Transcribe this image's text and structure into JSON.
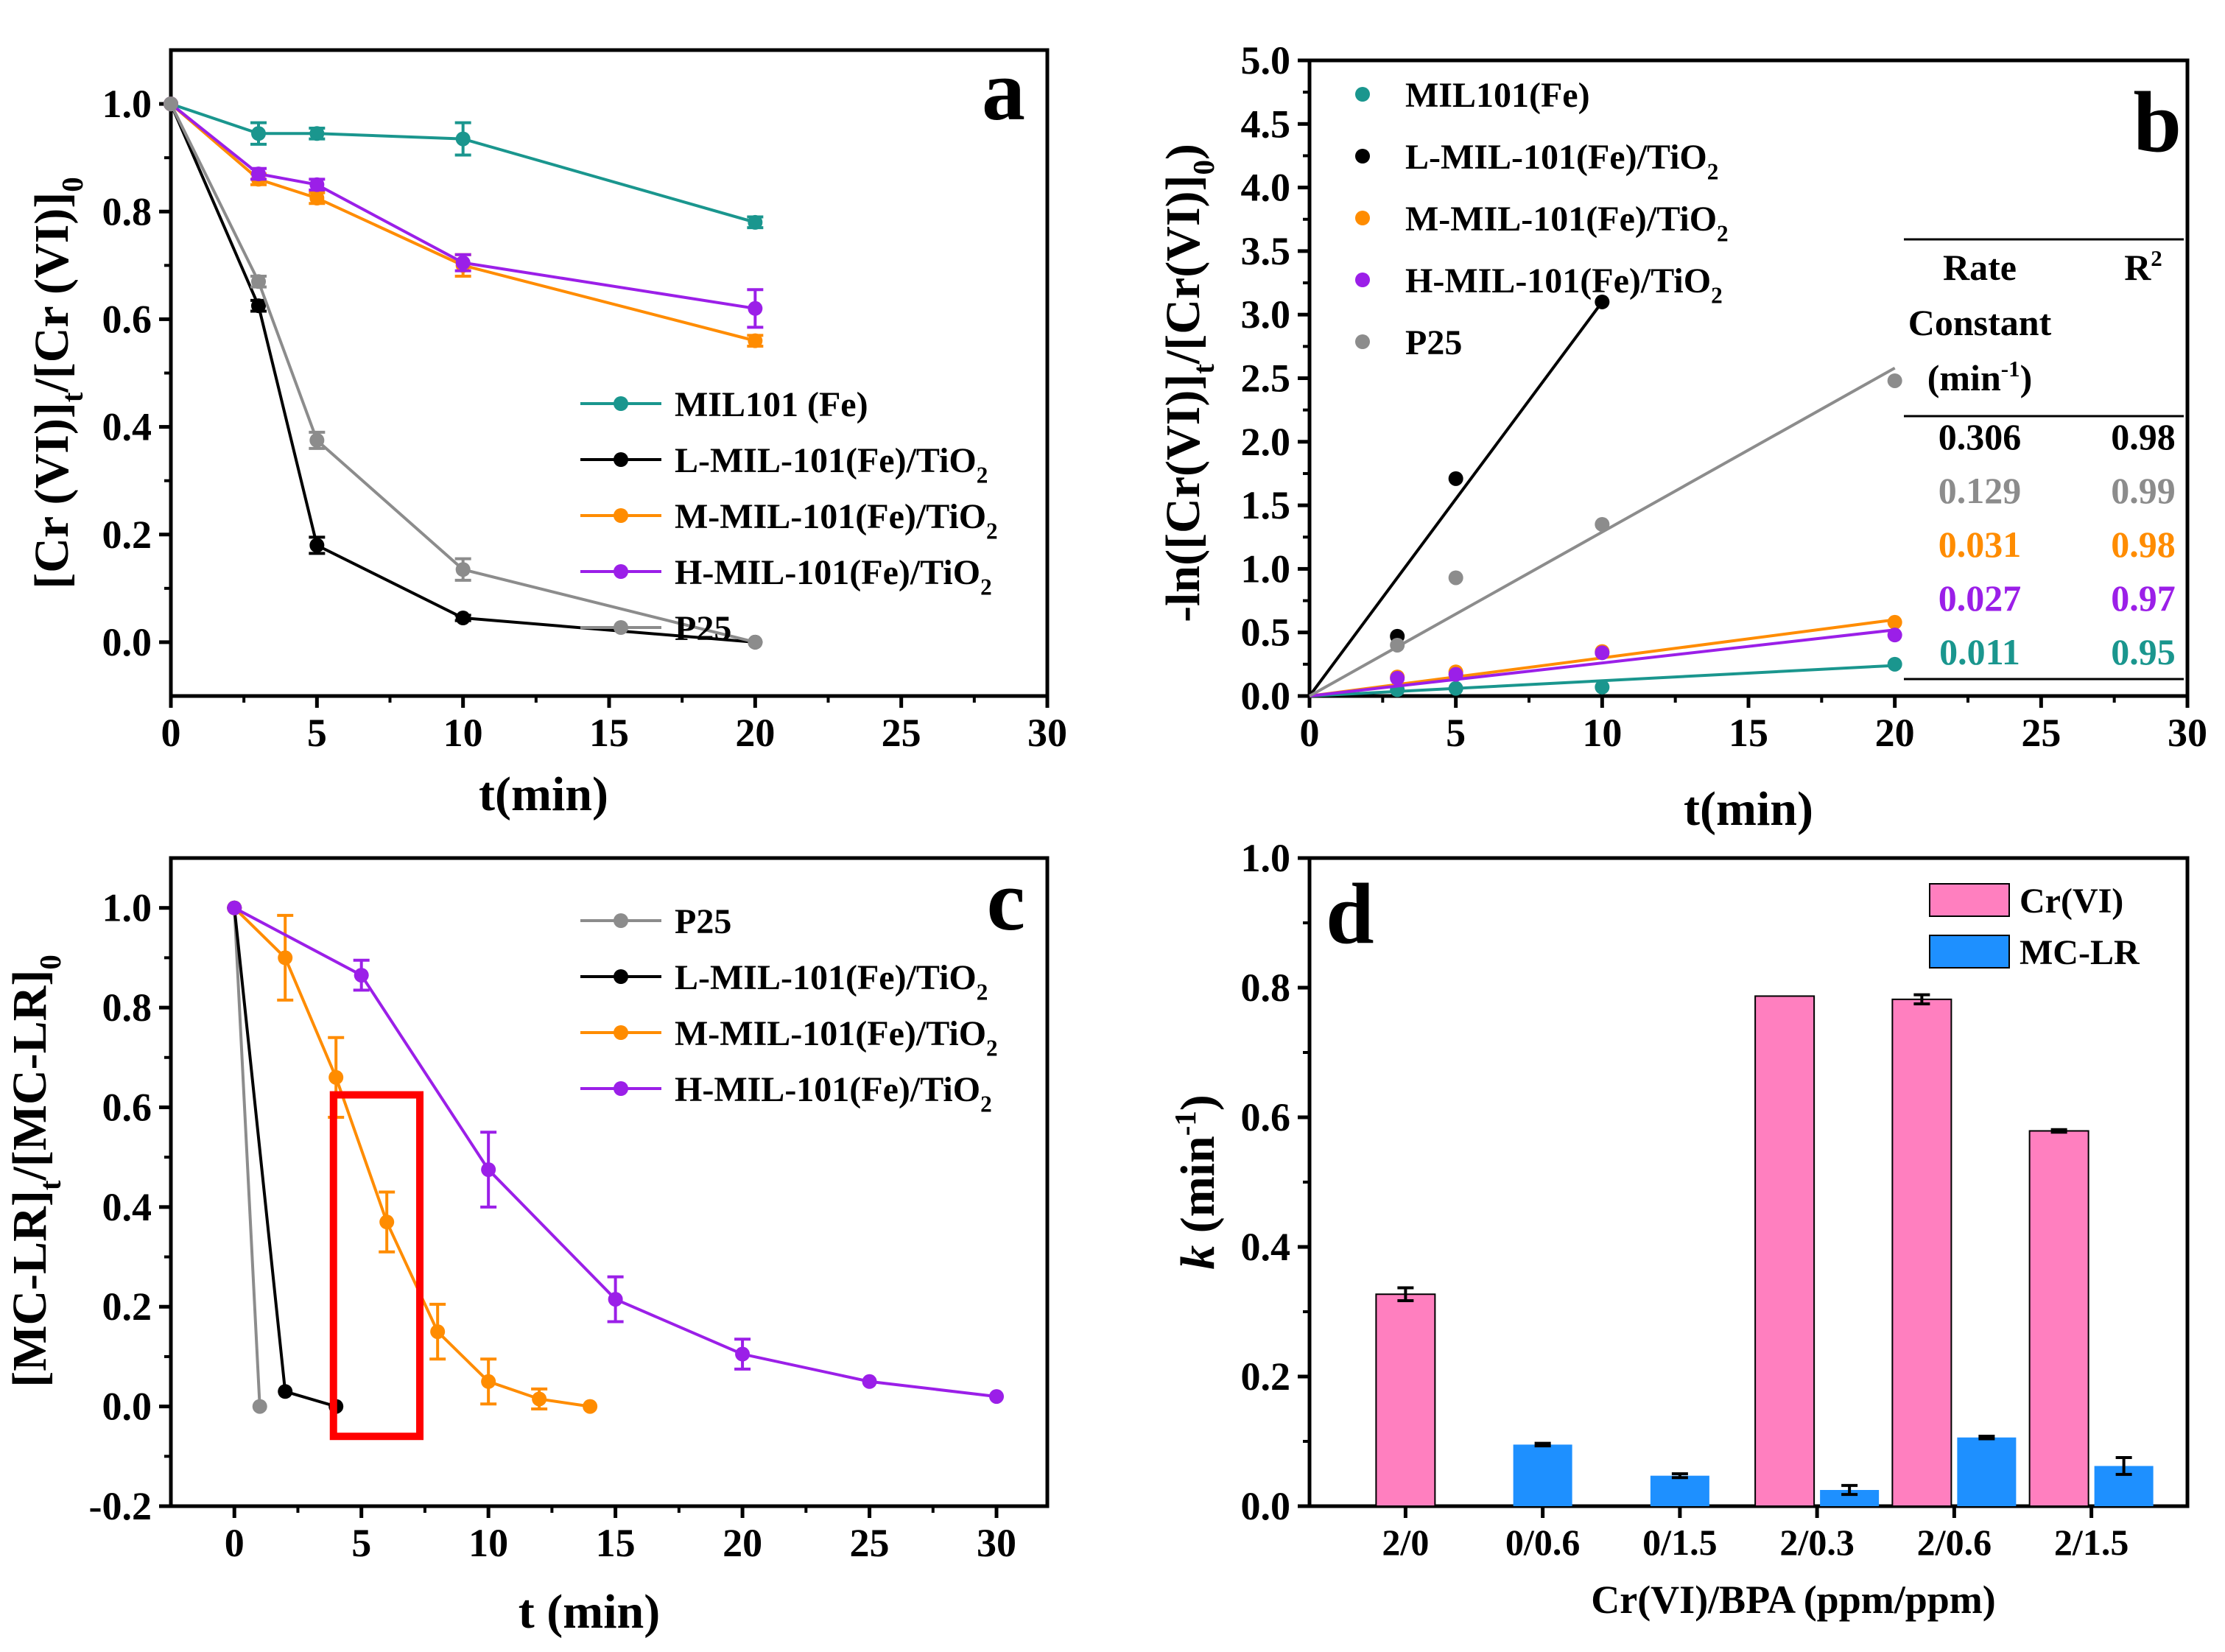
{
  "colors": {
    "teal": "#1a968e",
    "black": "#000000",
    "orange": "#ff8c00",
    "purple": "#9b1fe8",
    "gray": "#8c8c8c",
    "pink": "#ff7fbf",
    "blue": "#1e90ff",
    "red": "#ff0000"
  },
  "chart_data": [
    {
      "panel_letter": "a",
      "type": "line",
      "xlabel": "t(min)",
      "ylabel": "[Cr (VI)]t/[Cr (VI)]0",
      "xlim": [
        0,
        30
      ],
      "ylim": [
        -0.1,
        1.1
      ],
      "xticks": [
        0,
        5,
        10,
        15,
        20,
        25,
        30
      ],
      "yticks": [
        0.0,
        0.2,
        0.4,
        0.6,
        0.8,
        1.0
      ],
      "legend": "lower-right",
      "series": [
        {
          "name": "MIL101 (Fe)",
          "color": "#1a968e",
          "x": [
            0,
            3,
            5,
            10,
            20
          ],
          "y": [
            1.0,
            0.945,
            0.945,
            0.935,
            0.78
          ],
          "err": [
            0,
            0.02,
            0.01,
            0.03,
            0.01
          ]
        },
        {
          "name": "L-MIL-101(Fe)/TiO2",
          "color": "#000000",
          "x": [
            0,
            3,
            5,
            10,
            20
          ],
          "y": [
            1.0,
            0.625,
            0.18,
            0.045,
            0.0
          ],
          "err": [
            0,
            0.01,
            0.015,
            0.005,
            0
          ]
        },
        {
          "name": "M-MIL-101(Fe)/TiO2",
          "color": "#ff8c00",
          "x": [
            0,
            3,
            5,
            10,
            20
          ],
          "y": [
            1.0,
            0.86,
            0.825,
            0.7,
            0.56
          ],
          "err": [
            0,
            0.01,
            0.01,
            0.02,
            0.01
          ]
        },
        {
          "name": "H-MIL-101(Fe)/TiO2",
          "color": "#9b1fe8",
          "x": [
            0,
            3,
            5,
            10,
            20
          ],
          "y": [
            1.0,
            0.87,
            0.85,
            0.705,
            0.62
          ],
          "err": [
            0,
            0.01,
            0.01,
            0.015,
            0.035
          ]
        },
        {
          "name": "P25",
          "color": "#8c8c8c",
          "x": [
            0,
            3,
            5,
            10,
            20
          ],
          "y": [
            1.0,
            0.67,
            0.375,
            0.135,
            0.0
          ],
          "err": [
            0,
            0.01,
            0.015,
            0.02,
            0
          ]
        }
      ]
    },
    {
      "panel_letter": "b",
      "type": "scatter",
      "xlabel": "t(min)",
      "ylabel": "-ln([Cr(VI)]t/[Cr(VI)]0)",
      "xlim": [
        0,
        30
      ],
      "ylim": [
        0,
        5
      ],
      "xticks": [
        0,
        5,
        10,
        15,
        20,
        25,
        30
      ],
      "yticks": [
        0.0,
        0.5,
        1.0,
        1.5,
        2.0,
        2.5,
        3.0,
        3.5,
        4.0,
        4.5,
        5.0
      ],
      "legend": "top-left",
      "series": [
        {
          "name": "MIL101(Fe)",
          "color": "#1a968e",
          "x": [
            0,
            3,
            5,
            10,
            20
          ],
          "y": [
            0,
            0.05,
            0.06,
            0.07,
            0.25
          ],
          "fit_end": [
            20,
            0.24
          ]
        },
        {
          "name": "L-MIL-101(Fe)/TiO2",
          "color": "#000000",
          "x": [
            0,
            3,
            5,
            10
          ],
          "y": [
            0,
            0.47,
            1.71,
            3.1
          ],
          "fit_end": [
            10,
            3.1
          ]
        },
        {
          "name": "M-MIL-101(Fe)/TiO2",
          "color": "#ff8c00",
          "x": [
            0,
            3,
            5,
            10,
            20
          ],
          "y": [
            0,
            0.15,
            0.19,
            0.35,
            0.58
          ],
          "fit_end": [
            20,
            0.6
          ]
        },
        {
          "name": "H-MIL-101(Fe)/TiO2",
          "color": "#9b1fe8",
          "x": [
            0,
            3,
            5,
            10,
            20
          ],
          "y": [
            0,
            0.14,
            0.17,
            0.34,
            0.48
          ],
          "fit_end": [
            20,
            0.52
          ]
        },
        {
          "name": "P25",
          "color": "#8c8c8c",
          "x": [
            0,
            3,
            5,
            10,
            20
          ],
          "y": [
            0,
            0.4,
            0.93,
            1.35,
            2.48
          ],
          "fit_end": [
            20,
            2.58
          ]
        }
      ],
      "table": {
        "header_rate": [
          "Rate",
          "Constant",
          "(min"
        ],
        "header_r2": "R",
        "rows": [
          {
            "k": "0.306",
            "r2": "0.98",
            "color": "#000000"
          },
          {
            "k": "0.129",
            "r2": "0.99",
            "color": "#8c8c8c"
          },
          {
            "k": "0.031",
            "r2": "0.98",
            "color": "#ff8c00"
          },
          {
            "k": "0.027",
            "r2": "0.97",
            "color": "#9b1fe8"
          },
          {
            "k": "0.011",
            "r2": "0.95",
            "color": "#1a968e"
          }
        ]
      }
    },
    {
      "panel_letter": "c",
      "type": "line",
      "xlabel": "t (min)",
      "ylabel": "[MC-LR]t/[MC-LR]0",
      "xlim": [
        -2.5,
        32
      ],
      "ylim": [
        -0.2,
        1.1
      ],
      "xticks": [
        0,
        5,
        10,
        15,
        20,
        25,
        30
      ],
      "yticks": [
        -0.2,
        0.0,
        0.2,
        0.4,
        0.6,
        0.8,
        1.0
      ],
      "legend": "top-right",
      "highlight_box_x": [
        3.9,
        7.3
      ],
      "highlight_box_y": [
        -0.06,
        0.625
      ],
      "series": [
        {
          "name": "P25",
          "color": "#8c8c8c",
          "x": [
            0,
            1
          ],
          "y": [
            1.0,
            0.0
          ],
          "err": [
            0,
            0
          ]
        },
        {
          "name": "L-MIL-101(Fe)/TiO2",
          "color": "#000000",
          "x": [
            0,
            2,
            4
          ],
          "y": [
            1.0,
            0.03,
            0.0
          ],
          "err": [
            0,
            0,
            0
          ]
        },
        {
          "name": "M-MIL-101(Fe)/TiO2",
          "color": "#ff8c00",
          "x": [
            0,
            2,
            4,
            6,
            8,
            10,
            12,
            14
          ],
          "y": [
            1.0,
            0.9,
            0.66,
            0.37,
            0.15,
            0.05,
            0.015,
            0.0
          ],
          "err": [
            0,
            0.085,
            0.08,
            0.06,
            0.055,
            0.045,
            0.02,
            0
          ]
        },
        {
          "name": "H-MIL-101(Fe)/TiO2",
          "color": "#9b1fe8",
          "x": [
            0,
            5,
            10,
            15,
            20,
            25,
            30
          ],
          "y": [
            1.0,
            0.865,
            0.475,
            0.215,
            0.105,
            0.05,
            0.02
          ],
          "err": [
            0,
            0.03,
            0.075,
            0.045,
            0.03,
            0,
            0
          ]
        }
      ]
    },
    {
      "panel_letter": "d",
      "type": "bar",
      "xlabel": "Cr(VI)/BPA (ppm/ppm)",
      "ylabel": "k (min",
      "ylim": [
        0,
        1.0
      ],
      "yticks": [
        0.0,
        0.2,
        0.4,
        0.6,
        0.8,
        1.0
      ],
      "legend": "top-right",
      "categories": [
        "2/0",
        "0/0.6",
        "0/1.5",
        "2/0.3",
        "2/0.6",
        "2/1.5"
      ],
      "series": [
        {
          "name": "Cr(VI)",
          "color": "#ff7fbf",
          "values": [
            0.327,
            null,
            null,
            0.787,
            0.782,
            0.579
          ],
          "err": [
            0.01,
            null,
            null,
            0,
            0.007,
            0.002
          ]
        },
        {
          "name": "MC-LR",
          "color": "#1e90ff",
          "values": [
            null,
            0.095,
            0.047,
            0.025,
            0.106,
            0.062
          ],
          "err": [
            null,
            0.002,
            0.003,
            0.007,
            0.002,
            0.013
          ]
        }
      ]
    }
  ]
}
